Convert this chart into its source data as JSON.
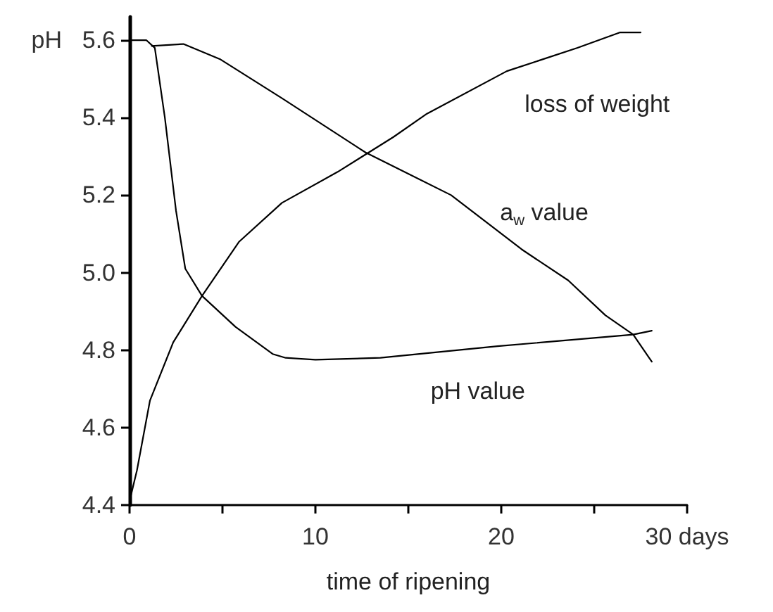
{
  "chart_data": {
    "type": "line",
    "xlabel": "time of ripening",
    "ylabel": "pH",
    "xlim": [
      0,
      30
    ],
    "xticks": [
      0,
      {
        "value": 5,
        "label": null
      },
      10,
      {
        "value": 15,
        "label": null
      },
      20,
      {
        "value": 25,
        "label": null
      },
      {
        "value": 30,
        "label": "30 days"
      }
    ],
    "ylim": [
      4.4,
      5.66
    ],
    "yticks": [
      4.4,
      4.6,
      4.8,
      {
        "value": 5,
        "label": "5.0"
      },
      5.2,
      5.4,
      5.6
    ],
    "grid": false,
    "legend": false,
    "marker": "none",
    "line_style": "solid",
    "series": [
      {
        "name": "loss of weight",
        "color": "#000000",
        "x": [
          0,
          0.4,
          1.1,
          2.35,
          3.9,
          5.9,
          8.2,
          11.2,
          14.2,
          16,
          20.3,
          24.1,
          26.4,
          27.5
        ],
        "values": [
          4.41,
          4.49,
          4.67,
          4.82,
          4.94,
          5.08,
          5.18,
          5.26,
          5.35,
          5.41,
          5.52,
          5.58,
          5.62,
          5.62
        ]
      },
      {
        "name": "a$_{w}$ value",
        "color": "#000000",
        "x": [
          1.2,
          2.9,
          4.9,
          8.2,
          12.7,
          17.3,
          21.1,
          23.6,
          25.6,
          27.1,
          28.1
        ],
        "values": [
          5.585,
          5.59,
          5.55,
          5.45,
          5.31,
          5.2,
          5.06,
          4.98,
          4.89,
          4.84,
          4.77
        ]
      },
      {
        "name": "pH value",
        "color": "#000000",
        "x": [
          0,
          0.9,
          1.36,
          1.9,
          2.5,
          3.0,
          3.9,
          5.7,
          7.7,
          8.4,
          10,
          13.5,
          19.8,
          27.1,
          28.1
        ],
        "values": [
          5.6,
          5.6,
          5.58,
          5.4,
          5.16,
          5.01,
          4.94,
          4.86,
          4.79,
          4.78,
          4.775,
          4.78,
          4.81,
          4.84,
          4.85
        ]
      }
    ]
  }
}
